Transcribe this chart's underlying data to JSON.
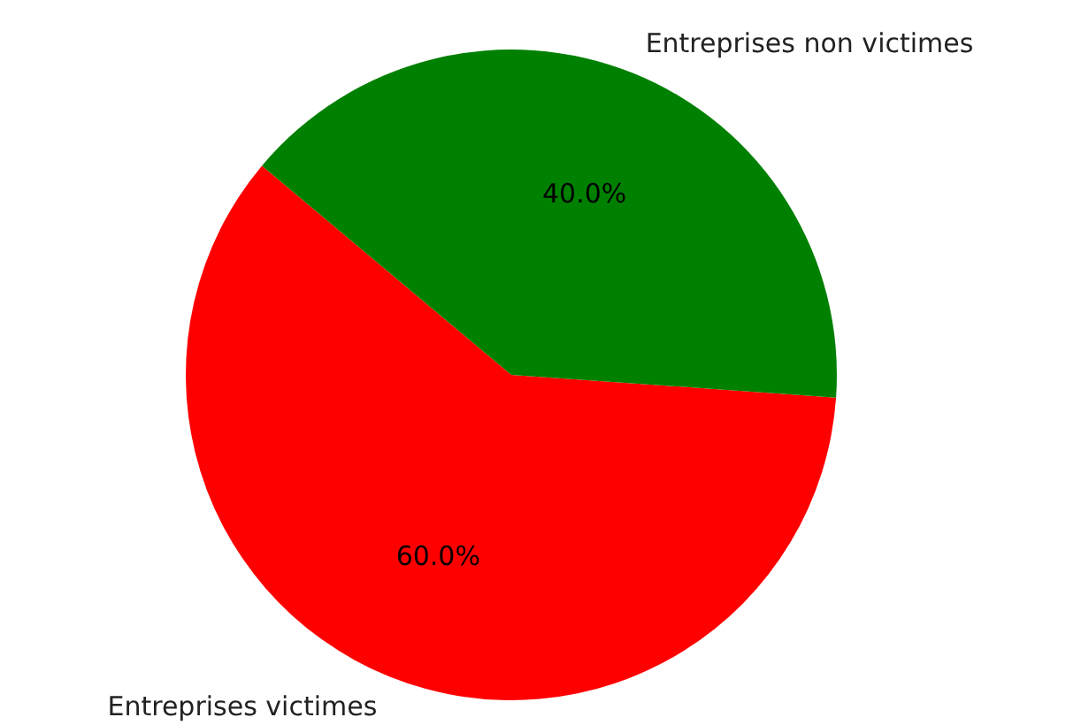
{
  "chart_data": {
    "type": "pie",
    "categories": [
      "Entreprises victimes",
      "Entreprises non victimes"
    ],
    "values": [
      60,
      40
    ],
    "colors": [
      "#ff0000",
      "#008000"
    ],
    "value_labels": [
      "60.0%",
      "40.0%"
    ]
  }
}
